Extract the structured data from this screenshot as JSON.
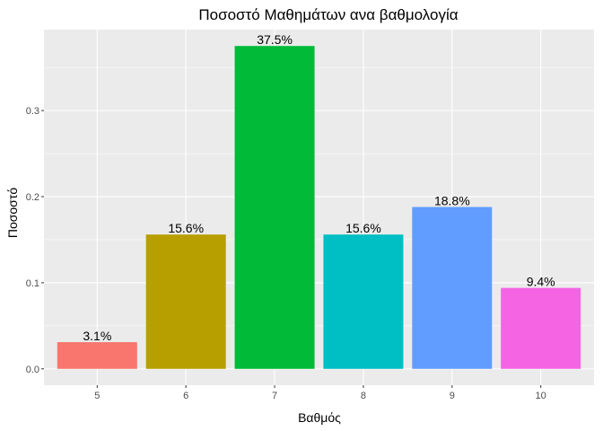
{
  "chart_data": {
    "type": "bar",
    "title": "Ποσοστό Μαθημάτων ανα βαθμολογία",
    "xlabel": "Βαθμός",
    "ylabel": "Ποσοστό",
    "categories": [
      "5",
      "6",
      "7",
      "8",
      "9",
      "10"
    ],
    "values": [
      0.031,
      0.156,
      0.375,
      0.156,
      0.188,
      0.094
    ],
    "data_labels": [
      "3.1%",
      "15.6%",
      "37.5%",
      "15.6%",
      "18.8%",
      "9.4%"
    ],
    "colors": [
      "#F8766D",
      "#B79F00",
      "#00BA38",
      "#00BFC4",
      "#619CFF",
      "#F564E3"
    ],
    "yticks": [
      0.0,
      0.1,
      0.2,
      0.3
    ],
    "ytick_labels": [
      "0.0",
      "0.1",
      "0.2",
      "0.3"
    ],
    "ylim": [
      -0.019,
      0.394
    ],
    "panel_background": "#EBEBEB",
    "grid_color": "#FFFFFF",
    "grid": true,
    "legend": "none"
  }
}
